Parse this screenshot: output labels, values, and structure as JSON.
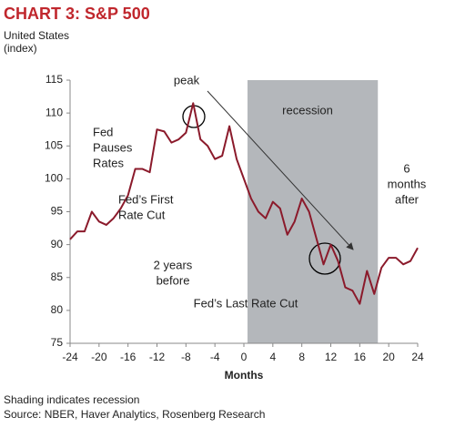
{
  "chart_data": {
    "type": "line",
    "title": "CHART 3: S&P 500",
    "subtitle": [
      "United States",
      "(index)"
    ],
    "x_label": "Months",
    "x": [
      -24,
      -23,
      -22,
      -21,
      -20,
      -19,
      -18,
      -17,
      -16,
      -15,
      -14,
      -13,
      -12,
      -11,
      -10,
      -9,
      -8,
      -7,
      -6,
      -5,
      -4,
      -3,
      -2,
      -1,
      0,
      1,
      2,
      3,
      4,
      5,
      6,
      7,
      8,
      9,
      10,
      11,
      12,
      13,
      14,
      15,
      16,
      17,
      18,
      19,
      20,
      21,
      22,
      23,
      24
    ],
    "series": [
      {
        "color": "#8b1a2b",
        "values": [
          90.8,
          92,
          92,
          95,
          93.5,
          93,
          94,
          95.5,
          97.5,
          101.5,
          101.5,
          101,
          107.5,
          107.2,
          105.5,
          106,
          107,
          111.5,
          106,
          105,
          103,
          103.5,
          108,
          103,
          100,
          97,
          95,
          94,
          96.5,
          95.5,
          91.5,
          93.5,
          97,
          95,
          91,
          87,
          90,
          87.5,
          83.5,
          83,
          81,
          86,
          82.5,
          86.5,
          88,
          88,
          87,
          87.5,
          89.5
        ]
      }
    ],
    "recession_range": [
      0.5,
      18.5
    ],
    "recession_color": "#b4b7bb",
    "xlim": [
      -24,
      24
    ],
    "xticks": [
      -24,
      -20,
      -16,
      -12,
      -8,
      -4,
      0,
      4,
      8,
      12,
      16,
      20,
      24
    ],
    "ylim": [
      75,
      115
    ],
    "yticks": [
      75,
      80,
      85,
      90,
      95,
      100,
      105,
      110,
      115
    ],
    "annotations": [
      {
        "lines": [
          "peak"
        ]
      },
      {
        "lines": [
          "recession"
        ]
      },
      {
        "lines": [
          "Fed",
          "Pauses",
          "Rates"
        ]
      },
      {
        "lines": [
          "Fed’s First",
          "Rate Cut"
        ]
      },
      {
        "lines": [
          "6",
          "months",
          "after"
        ]
      },
      {
        "lines": [
          "2 years",
          "before"
        ]
      },
      {
        "lines": [
          "Fed’s Last Rate Cut"
        ]
      }
    ],
    "footer": [
      "Shading indicates recession",
      "Source: NBER, Haver Analytics, Rosenberg Research"
    ]
  }
}
